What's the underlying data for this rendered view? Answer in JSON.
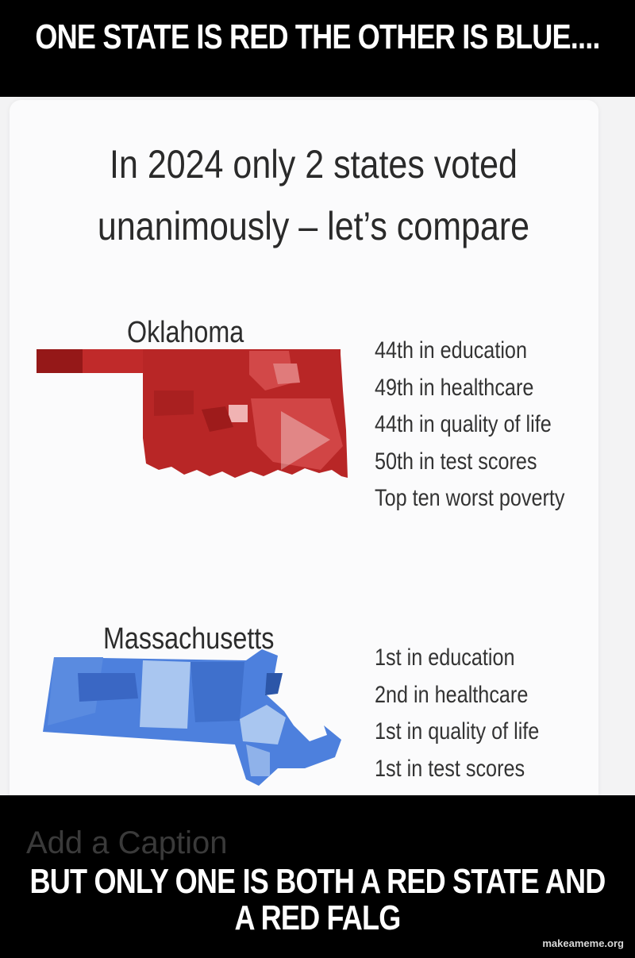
{
  "meme": {
    "top_text": "ONE STATE IS RED THE OTHER IS BLUE....",
    "bottom_text": "BUT ONLY ONE IS BOTH A RED STATE AND A RED FALG",
    "caption_placeholder": "Add a Caption",
    "watermark": "makeameme.org"
  },
  "post": {
    "headline_line1": "In 2024 only 2 states voted",
    "headline_line2": "unanimously – let’s compare",
    "oklahoma": {
      "name": "Oklahoma",
      "stats": [
        "44th in education",
        "49th in healthcare",
        "44th in quality of life",
        "50th in test scores",
        "Top ten worst poverty"
      ]
    },
    "massachusetts": {
      "name": "Massachusetts",
      "stats": [
        "1st in education",
        "2nd in healthcare",
        "1st in quality of life",
        "1st in test scores"
      ]
    }
  },
  "colors": {
    "red_dark": "#a51d1d",
    "red_mid": "#c63232",
    "red_light": "#e07b7b",
    "blue_dark": "#3b6fd0",
    "blue_mid": "#5a8be0",
    "blue_light": "#a9c6f0"
  }
}
